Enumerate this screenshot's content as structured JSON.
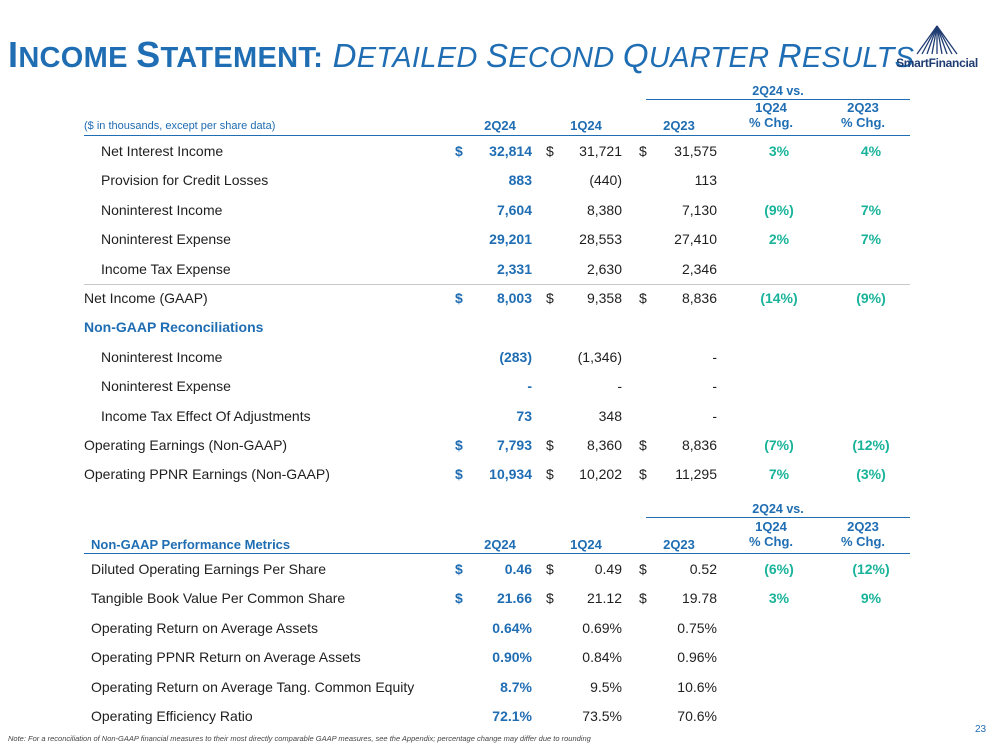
{
  "title": {
    "w1_cap": "I",
    "w1_rest": "NCOME ",
    "w2_cap": "S",
    "w2_rest": "TATEMENT:",
    "w3_cap": " D",
    "w3_rest": "ETAILED ",
    "w4_cap": "S",
    "w4_rest": "ECOND ",
    "w5_cap": "Q",
    "w5_rest": "UARTER ",
    "w6_cap": "R",
    "w6_rest": "ESULTS"
  },
  "logo": {
    "text": "SmartFinancial",
    "color": "#1f3c73"
  },
  "table1": {
    "group_header": "2Q24 vs.",
    "units_label": "($ in thousands, except per share data)",
    "col_2q24": "2Q24",
    "col_1q24": "1Q24",
    "col_2q23": "2Q23",
    "chg1_l1": "1Q24",
    "chg1_l2": "% Chg.",
    "chg2_l1": "2Q23",
    "chg2_l2": "% Chg.",
    "rows": [
      {
        "label": "Net Interest Income",
        "c1": "$",
        "v1": "32,814",
        "c2": "$",
        "v2": "31,721",
        "c3": "$",
        "v3": "31,575",
        "p1": "3%",
        "p2": "4%"
      },
      {
        "label": "Provision for Credit Losses",
        "c1": "",
        "v1": "883",
        "c2": "",
        "v2": "(440)",
        "c3": "",
        "v3": "113",
        "p1": "",
        "p2": ""
      },
      {
        "label": "Noninterest Income",
        "c1": "",
        "v1": "7,604",
        "c2": "",
        "v2": "8,380",
        "c3": "",
        "v3": "7,130",
        "p1": "(9%)",
        "p2": "7%"
      },
      {
        "label": "Noninterest Expense",
        "c1": "",
        "v1": "29,201",
        "c2": "",
        "v2": "28,553",
        "c3": "",
        "v3": "27,410",
        "p1": "2%",
        "p2": "7%"
      },
      {
        "label": "Income Tax Expense",
        "c1": "",
        "v1": "2,331",
        "c2": "",
        "v2": "2,630",
        "c3": "",
        "v3": "2,346",
        "p1": "",
        "p2": ""
      },
      {
        "label": "Net Income (GAAP)",
        "c1": "$",
        "v1": "8,003",
        "c2": "$",
        "v2": "9,358",
        "c3": "$",
        "v3": "8,836",
        "p1": "(14%)",
        "p2": "(9%)"
      },
      {
        "label": "Non-GAAP Reconciliations",
        "c1": "",
        "v1": "",
        "c2": "",
        "v2": "",
        "c3": "",
        "v3": "",
        "p1": "",
        "p2": ""
      },
      {
        "label": "Noninterest Income",
        "c1": "",
        "v1": "(283)",
        "c2": "",
        "v2": "(1,346)",
        "c3": "",
        "v3": "-",
        "p1": "",
        "p2": ""
      },
      {
        "label": "Noninterest Expense",
        "c1": "",
        "v1": "-",
        "c2": "",
        "v2": "-",
        "c3": "",
        "v3": "-",
        "p1": "",
        "p2": ""
      },
      {
        "label": "Income Tax Effect Of Adjustments",
        "c1": "",
        "v1": "73",
        "c2": "",
        "v2": "348",
        "c3": "",
        "v3": "-",
        "p1": "",
        "p2": ""
      },
      {
        "label": "Operating Earnings (Non-GAAP)",
        "c1": "$",
        "v1": "7,793",
        "c2": "$",
        "v2": "8,360",
        "c3": "$",
        "v3": "8,836",
        "p1": "(7%)",
        "p2": "(12%)"
      },
      {
        "label": "Operating PPNR Earnings (Non-GAAP)",
        "c1": "$",
        "v1": "10,934",
        "c2": "$",
        "v2": "10,202",
        "c3": "$",
        "v3": "11,295",
        "p1": "7%",
        "p2": "(3%)"
      }
    ]
  },
  "table2": {
    "group_header": "2Q24 vs.",
    "section_label": "Non-GAAP Performance Metrics",
    "col_2q24": "2Q24",
    "col_1q24": "1Q24",
    "col_2q23": "2Q23",
    "chg1_l1": "1Q24",
    "chg1_l2": "% Chg.",
    "chg2_l1": "2Q23",
    "chg2_l2": "% Chg.",
    "rows": [
      {
        "label": "Diluted Operating Earnings Per Share",
        "c1": "$",
        "v1": "0.46",
        "c2": "$",
        "v2": "0.49",
        "c3": "$",
        "v3": "0.52",
        "p1": "(6%)",
        "p2": "(12%)"
      },
      {
        "label": "Tangible Book Value Per Common Share",
        "c1": "$",
        "v1": "21.66",
        "c2": "$",
        "v2": "21.12",
        "c3": "$",
        "v3": "19.78",
        "p1": "3%",
        "p2": "9%"
      },
      {
        "label": "Operating Return on Average Assets",
        "c1": "",
        "v1": "0.64%",
        "c2": "",
        "v2": "0.69%",
        "c3": "",
        "v3": "0.75%",
        "p1": "",
        "p2": ""
      },
      {
        "label": "Operating PPNR Return on Average Assets",
        "c1": "",
        "v1": "0.90%",
        "c2": "",
        "v2": "0.84%",
        "c3": "",
        "v3": "0.96%",
        "p1": "",
        "p2": ""
      },
      {
        "label": "Operating Return on Average Tang. Common Equity",
        "c1": "",
        "v1": "8.7%",
        "c2": "",
        "v2": "9.5%",
        "c3": "",
        "v3": "10.6%",
        "p1": "",
        "p2": ""
      },
      {
        "label": "Operating Efficiency Ratio",
        "c1": "",
        "v1": "72.1%",
        "c2": "",
        "v2": "73.5%",
        "c3": "",
        "v3": "70.6%",
        "p1": "",
        "p2": ""
      }
    ]
  },
  "footnote": "Note: For a reconciliation of Non-GAAP financial measures to their most directly comparable GAAP measures, see the Appendix; percentage change may differ due to rounding",
  "page_number": "23"
}
